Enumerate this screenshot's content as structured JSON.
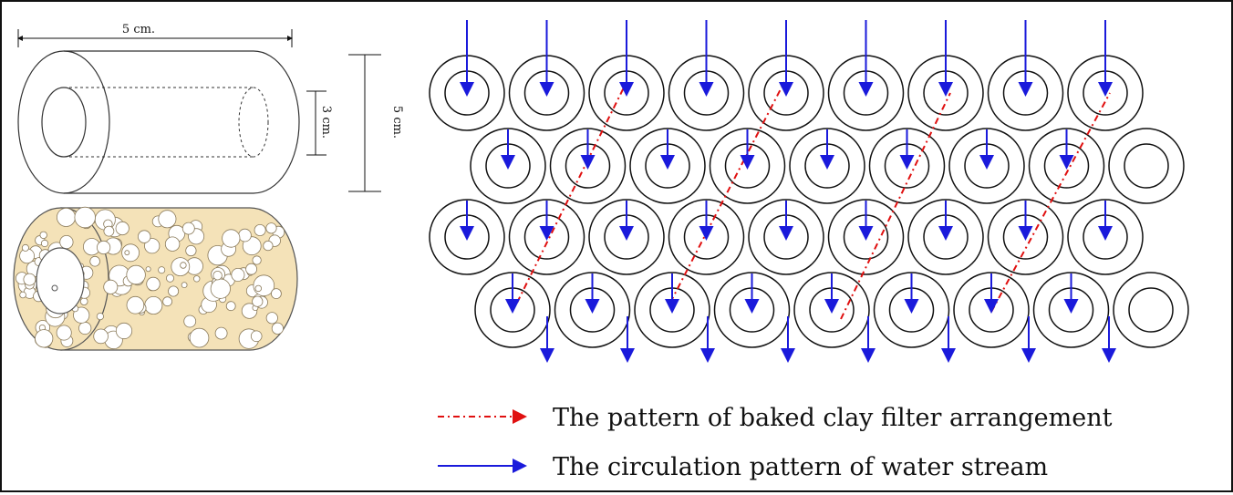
{
  "cylinder": {
    "length_label": "5 cm.",
    "inner_diameter_label": "3 cm.",
    "outer_diameter_label": "5 cm.",
    "porous_fill_color": "#f4e2b8"
  },
  "arrangement": {
    "rows": [
      9,
      9,
      9,
      9
    ],
    "ring_color": "#111111",
    "water_arrow_color": "#1a1adb",
    "filter_path_color": "#e01010"
  },
  "legend": {
    "items": [
      {
        "label": "The pattern of baked clay filter arrangement",
        "style": "dash-dot",
        "color": "#e01010"
      },
      {
        "label": "The circulation pattern of water stream",
        "style": "solid",
        "color": "#1a1adb"
      }
    ]
  }
}
